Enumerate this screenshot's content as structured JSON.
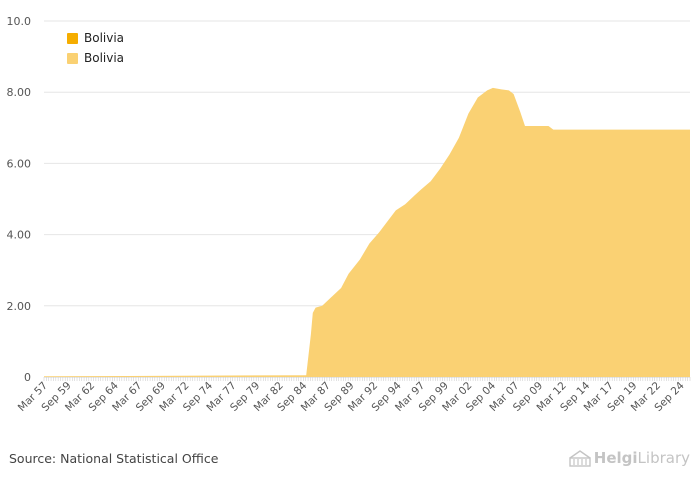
{
  "legend": [
    {
      "label": "Bolivia",
      "color": "#f5ad00"
    },
    {
      "label": "Bolivia",
      "color": "#fad173"
    }
  ],
  "source": "Source: National Statistical Office",
  "brand": {
    "part1": "Helgi",
    "part2": "Library",
    "logo_icon": "building-icon"
  },
  "chart_data": {
    "type": "area",
    "title": "",
    "xlabel": "",
    "ylabel": "",
    "ylim": [
      0,
      10
    ],
    "yticks": [
      0,
      2,
      4,
      6,
      8,
      10
    ],
    "ytick_labels": [
      "0",
      "2.00",
      "4.00",
      "6.00",
      "8.00",
      "10.0"
    ],
    "xlim": [
      1957.0,
      2025.5
    ],
    "xtick_labels": [
      "Mar 57",
      "Sep 59",
      "Mar 62",
      "Sep 64",
      "Mar 67",
      "Sep 69",
      "Mar 72",
      "Sep 74",
      "Mar 77",
      "Sep 79",
      "Mar 82",
      "Sep 84",
      "Mar 87",
      "Sep 89",
      "Mar 92",
      "Sep 94",
      "Mar 97",
      "Sep 99",
      "Mar 02",
      "Sep 04",
      "Mar 07",
      "Sep 09",
      "Mar 12",
      "Sep 14",
      "Mar 17",
      "Sep 19",
      "Mar 22",
      "Sep 24"
    ],
    "series": [
      {
        "name": "Bolivia",
        "color": "#fad173",
        "x": [
          1957.0,
          1984.8,
          1985.3,
          1985.5,
          1985.8,
          1986.5,
          1987.5,
          1988.5,
          1989.3,
          1990.5,
          1991.5,
          1992.5,
          1993.5,
          1994.3,
          1995.3,
          1996.3,
          1997.0,
          1998.0,
          1999.0,
          2000.0,
          2001.0,
          2002.0,
          2003.0,
          2004.0,
          2004.6,
          2005.5,
          2006.3,
          2006.8,
          2007.5,
          2008.0,
          2010.5,
          2011.0,
          2025.5
        ],
        "y": [
          0.02,
          0.05,
          1.2,
          1.8,
          1.95,
          2.0,
          2.25,
          2.5,
          2.9,
          3.3,
          3.75,
          4.05,
          4.4,
          4.68,
          4.85,
          5.1,
          5.27,
          5.5,
          5.85,
          6.25,
          6.72,
          7.4,
          7.85,
          8.05,
          8.12,
          8.08,
          8.05,
          7.95,
          7.45,
          7.05,
          7.05,
          6.95,
          6.95
        ]
      }
    ]
  }
}
